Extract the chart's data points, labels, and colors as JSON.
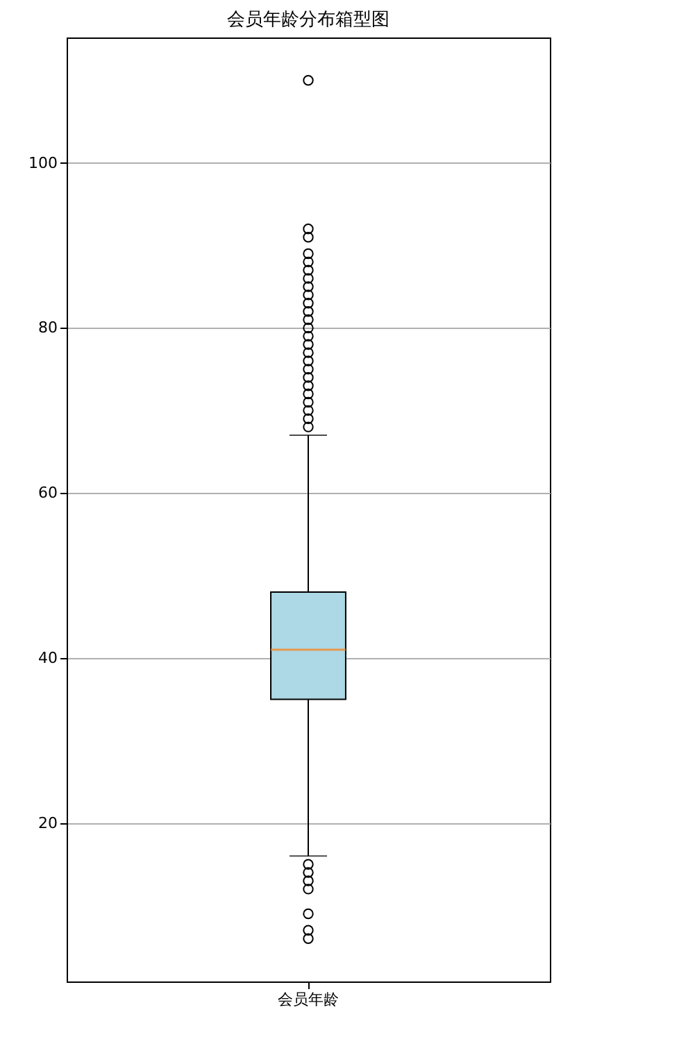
{
  "chart_data": {
    "type": "box",
    "title": "会员年龄分布箱型图",
    "categories": [
      "会员年龄"
    ],
    "series": [
      {
        "color": "#add8e6",
        "boxes": [
          {
            "low": 16,
            "q1": 35,
            "median": 41,
            "q3": 48,
            "high": 67,
            "outliers": [
              68,
              69,
              70,
              71,
              72,
              73,
              74,
              75,
              76,
              77,
              78,
              79,
              80,
              81,
              82,
              83,
              84,
              85,
              86,
              87,
              88,
              89,
              91,
              92,
              110,
              15,
              14,
              13,
              12,
              9,
              7,
              6
            ]
          }
        ]
      }
    ],
    "ylim": [
      0.8,
      115.2
    ],
    "yticks": [
      20,
      40,
      60,
      80,
      100
    ],
    "grid": "y"
  }
}
